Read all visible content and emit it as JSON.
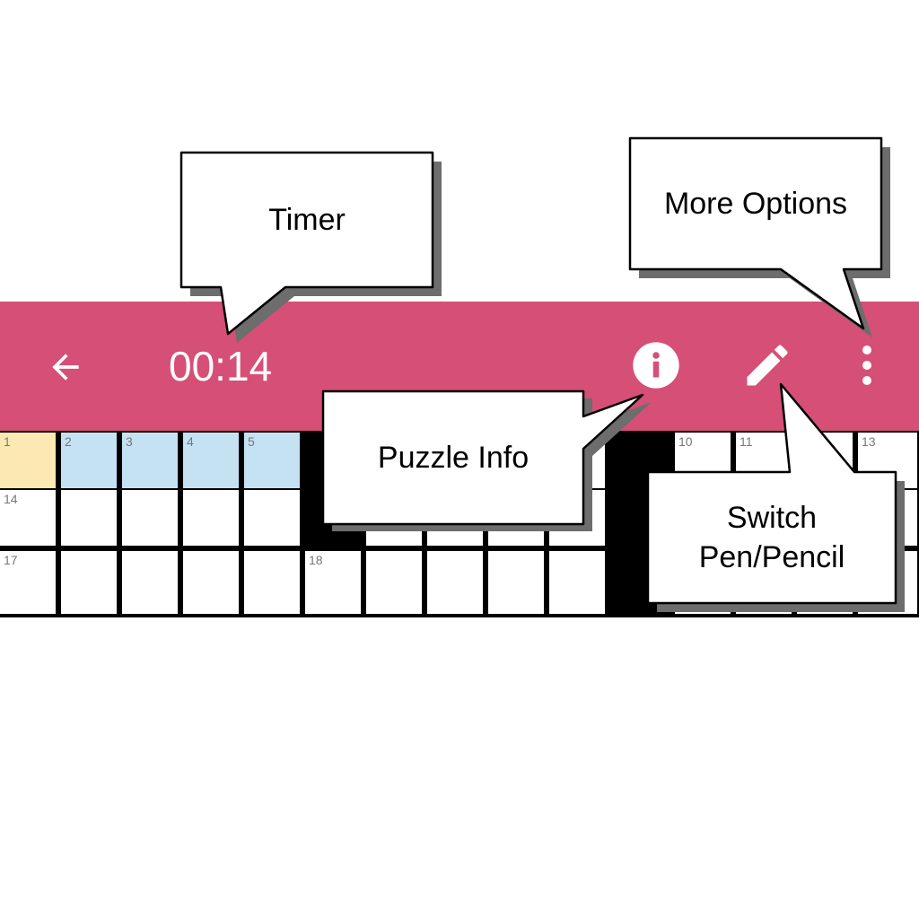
{
  "toolbar": {
    "background": "#d64f77",
    "back_icon": "arrow-left-icon",
    "timer": "00:14",
    "info_icon": "info-circle-icon",
    "pen_icon": "pencil-icon",
    "more_icon": "more-vertical-icon"
  },
  "grid": {
    "selected_color": "#fbe8b3",
    "highlight_color": "#c5e2f3",
    "numbers": {
      "r0c0": "1",
      "r0c1": "2",
      "r0c2": "3",
      "r0c3": "4",
      "r0c4": "5",
      "r0c11": "10",
      "r0c12": "11",
      "r0c14": "13",
      "r1c0": "14",
      "r2c0": "17",
      "r2c5": "18"
    }
  },
  "callouts": {
    "timer": "Timer",
    "more_options": "More Options",
    "puzzle_info": "Puzzle Info",
    "switch_pen_pencil": "Switch\nPen/Pencil"
  }
}
